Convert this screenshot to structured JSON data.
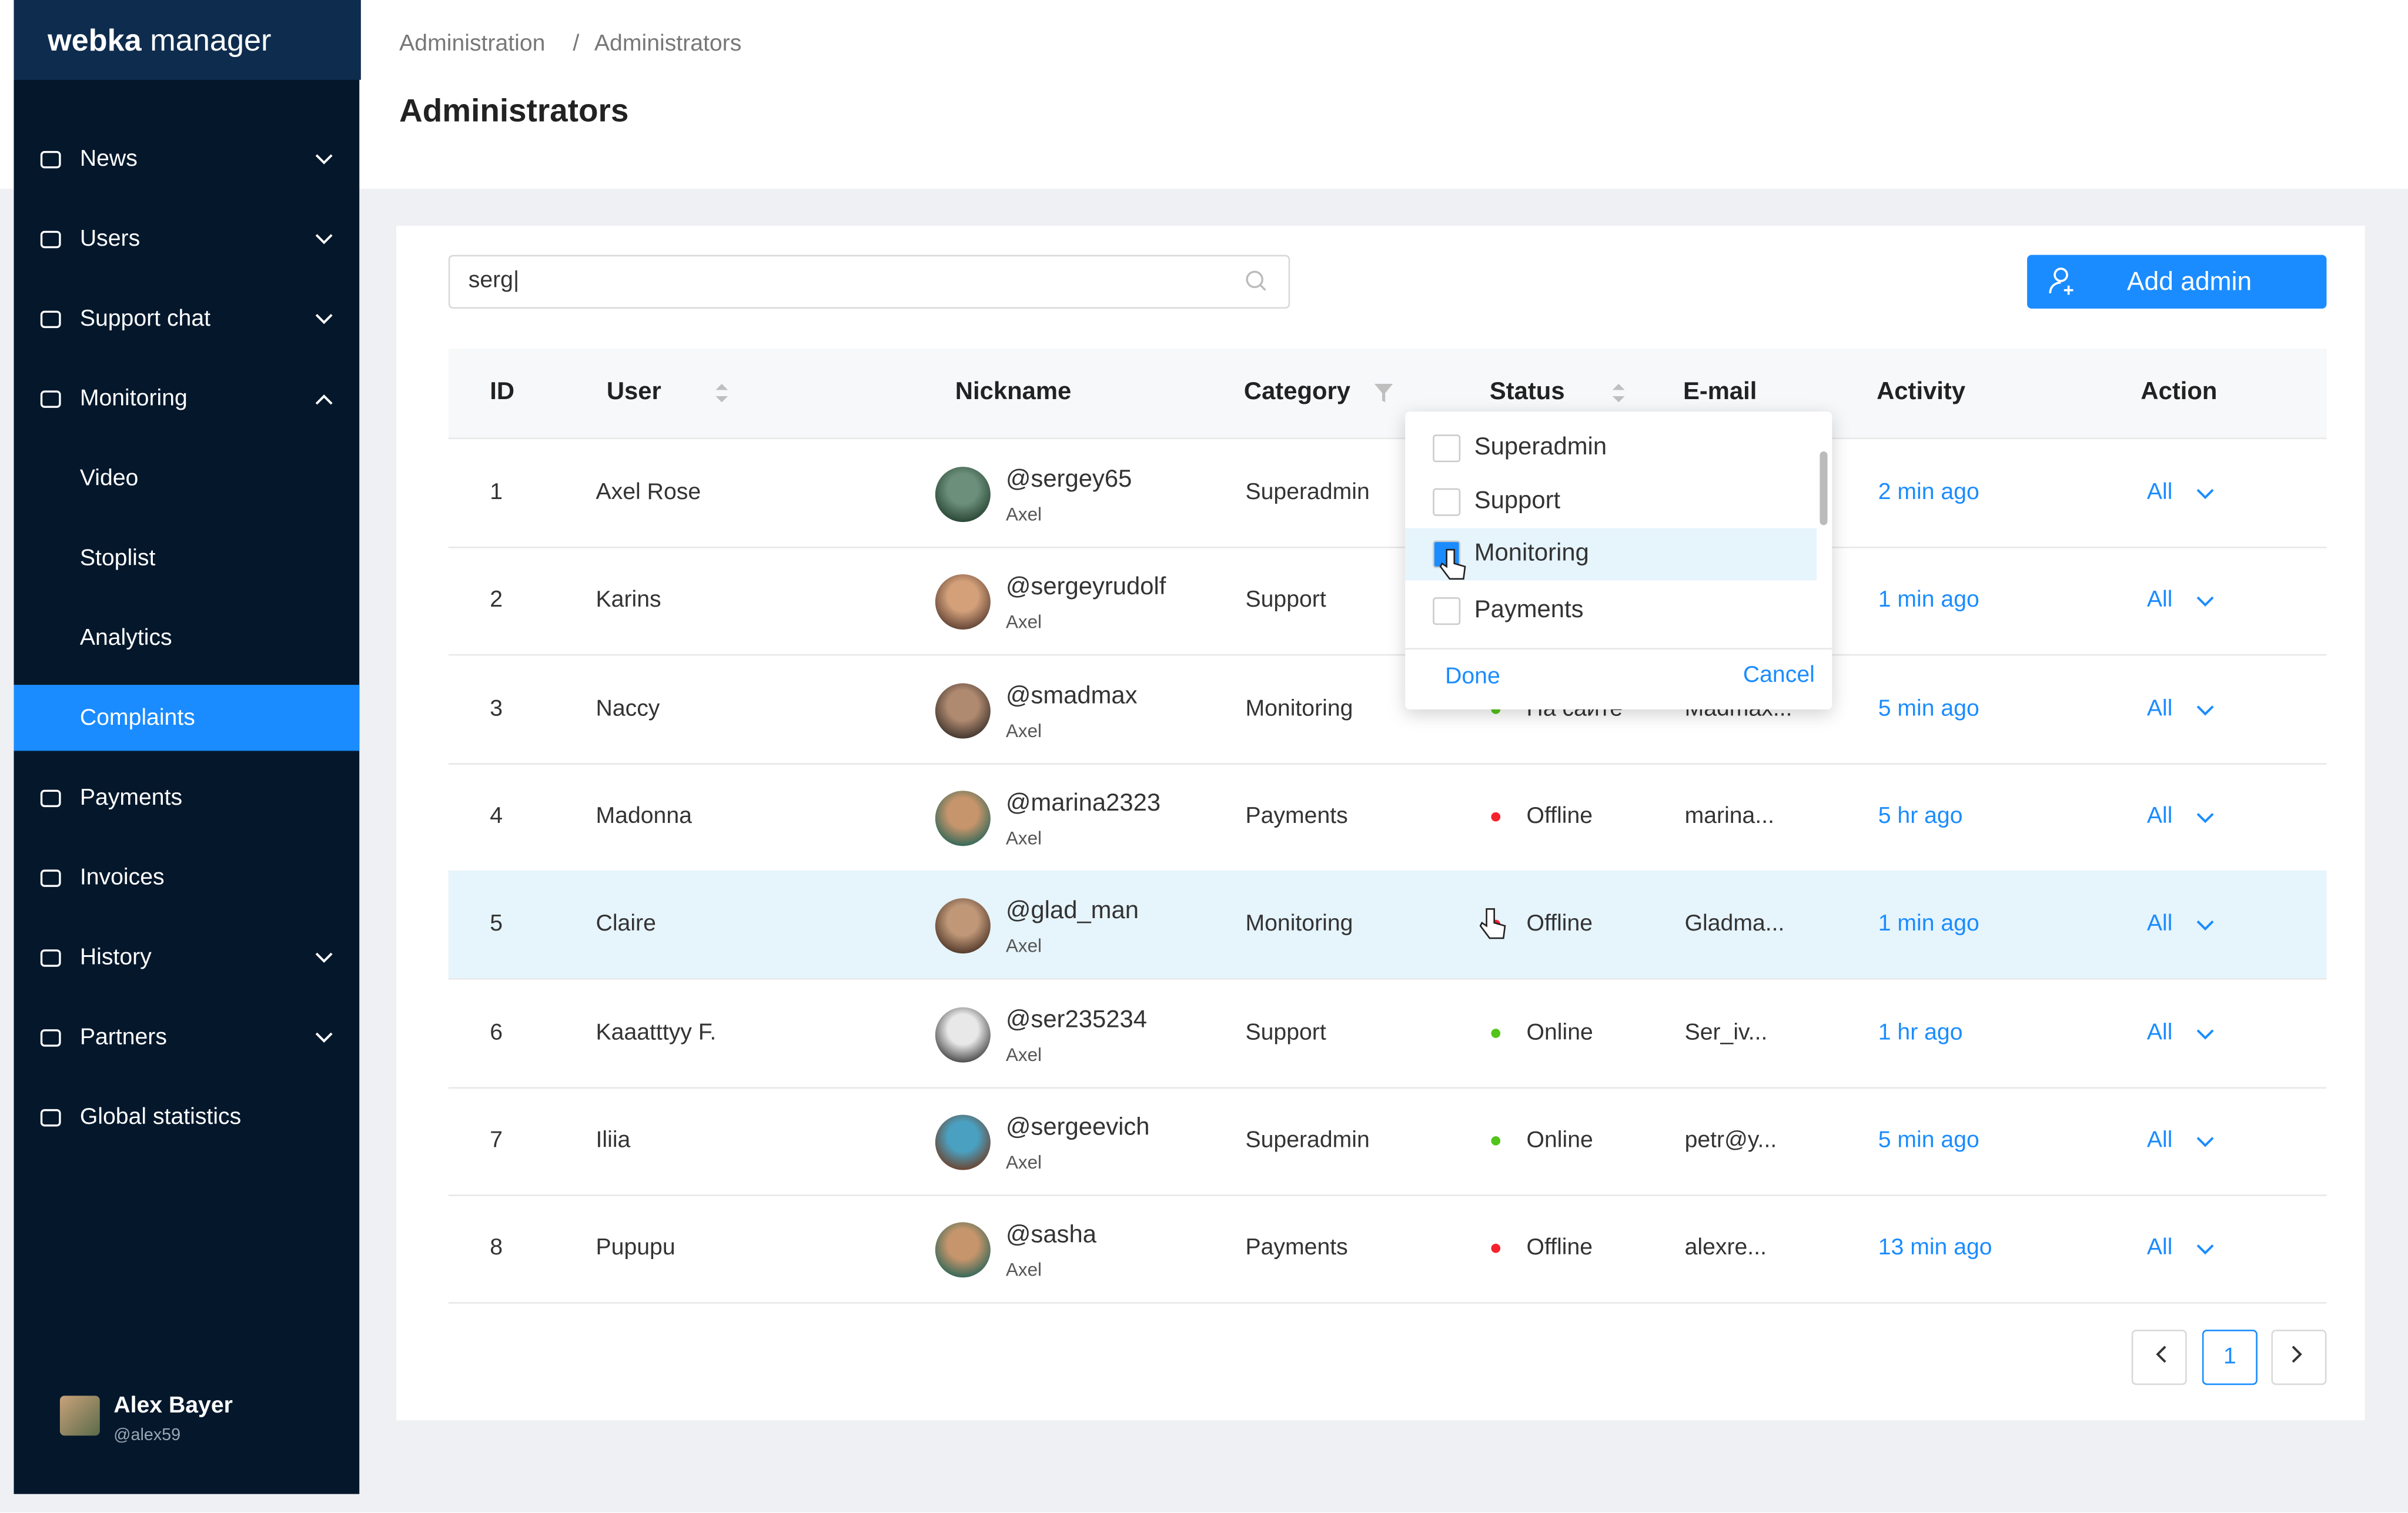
{
  "sidebar": {
    "brand_bold": "webka",
    "brand_light": "manager",
    "menu": [
      {
        "label": "News",
        "expand": "down",
        "child": false,
        "active": false
      },
      {
        "label": "Users",
        "expand": "down",
        "child": false,
        "active": false
      },
      {
        "label": "Support chat",
        "expand": "down",
        "child": false,
        "active": false
      },
      {
        "label": "Monitoring",
        "expand": "up",
        "child": false,
        "active": false
      },
      {
        "label": "Video",
        "expand": null,
        "child": true,
        "active": false
      },
      {
        "label": "Stoplist",
        "expand": null,
        "child": true,
        "active": false
      },
      {
        "label": "Analytics",
        "expand": null,
        "child": true,
        "active": false
      },
      {
        "label": "Complaints",
        "expand": null,
        "child": true,
        "active": true
      },
      {
        "label": "Payments",
        "expand": null,
        "child": false,
        "active": false
      },
      {
        "label": "Invoices",
        "expand": null,
        "child": false,
        "active": false
      },
      {
        "label": "History",
        "expand": "down",
        "child": false,
        "active": false
      },
      {
        "label": "Partners",
        "expand": "down",
        "child": false,
        "active": false
      },
      {
        "label": "Global statistics",
        "expand": null,
        "child": false,
        "active": false
      }
    ],
    "user": {
      "name": "Alex Bayer",
      "handle": "@alex59"
    }
  },
  "header": {
    "breadcrumb": [
      "Administration",
      "Administrators"
    ],
    "breadcrumb_separator": "/",
    "title": "Administrators"
  },
  "toolbar": {
    "search": "serg|",
    "add_button": "Add admin"
  },
  "table": {
    "columns": [
      "ID",
      "User",
      "Nickname",
      "Category",
      "Status",
      "E-mail",
      "Activity",
      "Action"
    ],
    "rows": [
      {
        "id": 1,
        "user": "Axel Rose",
        "nickname": "@sergey65",
        "name": "Axel",
        "category": "Superadmin",
        "status": null,
        "status_color": null,
        "email": null,
        "activity": "2 min ago",
        "action": "All",
        "highlight": false
      },
      {
        "id": 2,
        "user": "Karins",
        "nickname": "@sergeyrudolf",
        "name": "Axel",
        "category": "Support",
        "status": null,
        "status_color": null,
        "email": null,
        "activity": "1 min ago",
        "action": "All",
        "highlight": false
      },
      {
        "id": 3,
        "user": "Naccy",
        "nickname": "@smadmax",
        "name": "Axel",
        "category": "Monitoring",
        "status": "На сайте",
        "status_color": "#52c41a",
        "email": "Madmax...",
        "activity": "5 min ago",
        "action": "All",
        "highlight": false
      },
      {
        "id": 4,
        "user": "Madonna",
        "nickname": "@marina2323",
        "name": "Axel",
        "category": "Payments",
        "status": "Offline",
        "status_color": "#f5222d",
        "email": "marina...",
        "activity": "5 hr ago",
        "action": "All",
        "highlight": false
      },
      {
        "id": 5,
        "user": "Claire",
        "nickname": "@glad_man",
        "name": "Axel",
        "category": "Monitoring",
        "status": "Offline",
        "status_color": "#f5222d",
        "email": "Gladma...",
        "activity": "1 min ago",
        "action": "All",
        "highlight": true
      },
      {
        "id": 6,
        "user": "Kaaatttyy F.",
        "nickname": "@ser235234",
        "name": "Axel",
        "category": "Support",
        "status": "Online",
        "status_color": "#52c41a",
        "email": "Ser_iv...",
        "activity": "1 hr ago",
        "action": "All",
        "highlight": false
      },
      {
        "id": 7,
        "user": "Iliia",
        "nickname": "@sergeevich",
        "name": "Axel",
        "category": "Superadmin",
        "status": "Online",
        "status_color": "#52c41a",
        "email": "petr@y...",
        "activity": "5 min ago",
        "action": "All",
        "highlight": false
      },
      {
        "id": 8,
        "user": "Pupupu",
        "nickname": "@sasha",
        "name": "Axel",
        "category": "Payments",
        "status": "Offline",
        "status_color": "#f5222d",
        "email": "alexre...",
        "activity": "13 min ago",
        "action": "All",
        "highlight": false
      }
    ]
  },
  "filter_dropdown": {
    "options": [
      {
        "label": "Superadmin",
        "checked": false
      },
      {
        "label": "Support",
        "checked": false
      },
      {
        "label": "Monitoring",
        "checked": true
      },
      {
        "label": "Payments",
        "checked": false
      }
    ],
    "done": "Done",
    "cancel": "Cancel"
  },
  "pagination": {
    "current": 1
  }
}
